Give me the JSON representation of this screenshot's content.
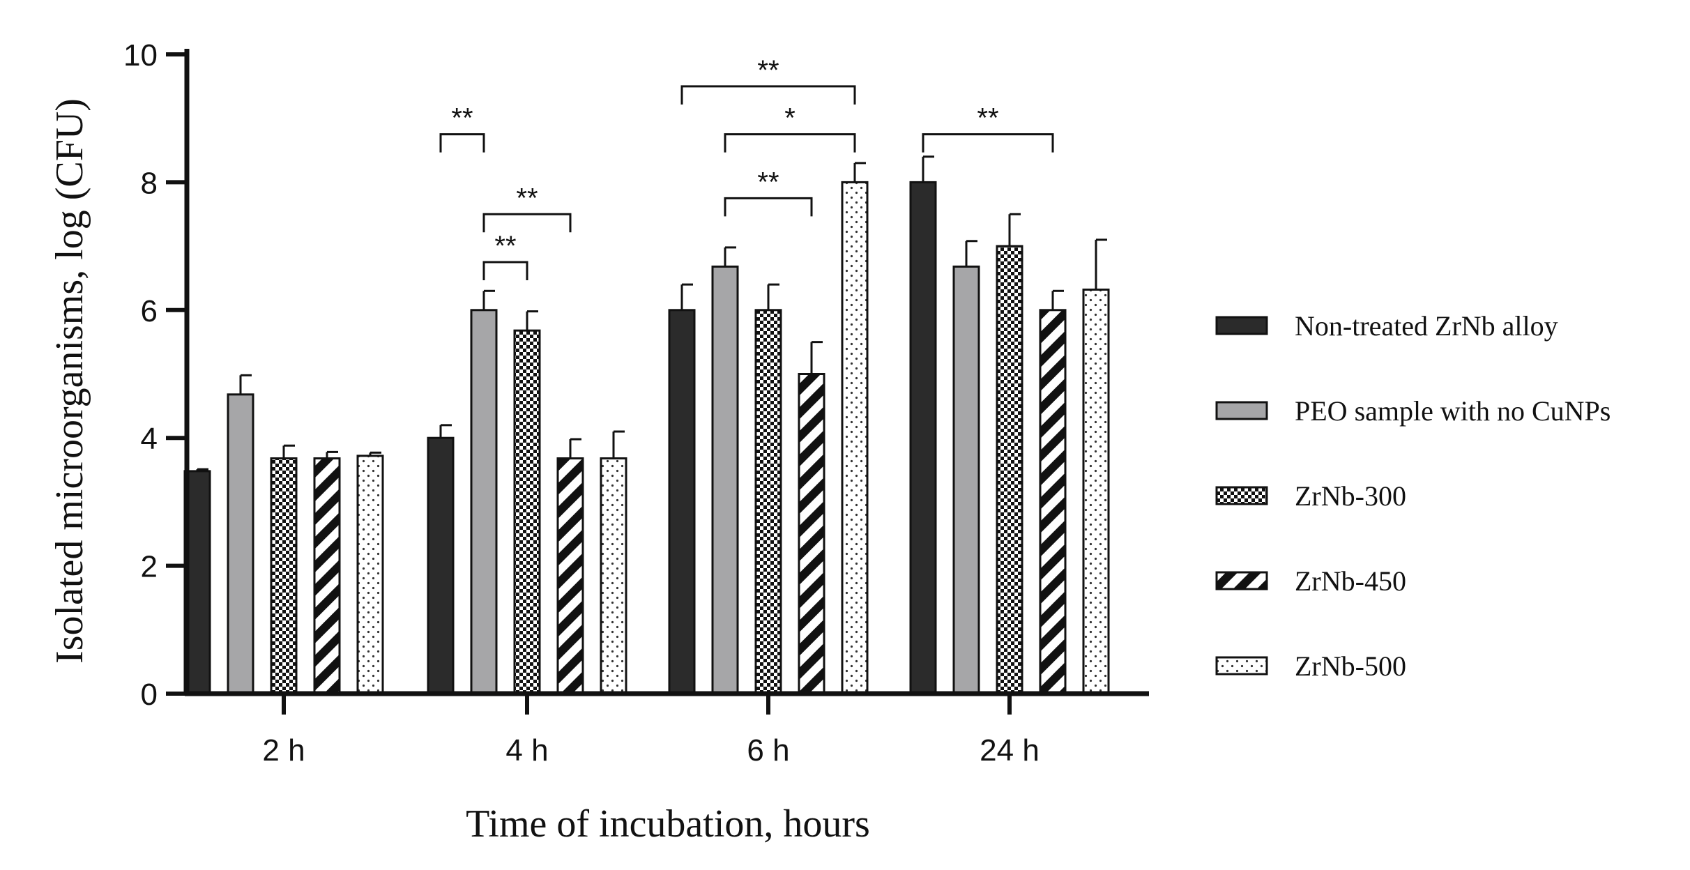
{
  "chart_data": {
    "type": "bar",
    "categories": [
      "2 h",
      "4 h",
      "6 h",
      "24 h"
    ],
    "xlabel": "Time of incubation, hours",
    "ylabel": "Isolated microorganisms, log (CFU)",
    "ylim": [
      0,
      10
    ],
    "yticks": [
      "0",
      "2",
      "4",
      "6",
      "8",
      "10"
    ],
    "grid": false,
    "legend_position": "right",
    "series": [
      {
        "name": "Non-treated ZrNb alloy",
        "pattern": "solid-dark",
        "values": [
          3.48,
          4.0,
          6.0,
          8.0
        ],
        "errors": [
          0.03,
          0.2,
          0.4,
          0.4
        ]
      },
      {
        "name": "PEO sample with no CuNPs",
        "pattern": "solid-grey",
        "values": [
          4.68,
          6.0,
          6.68,
          6.68
        ],
        "errors": [
          0.3,
          0.3,
          0.3,
          0.4
        ]
      },
      {
        "name": "ZrNb-300",
        "pattern": "checker",
        "values": [
          3.68,
          5.68,
          6.0,
          7.0
        ],
        "errors": [
          0.2,
          0.3,
          0.4,
          0.5
        ]
      },
      {
        "name": "ZrNb-450",
        "pattern": "diagonal",
        "values": [
          3.68,
          3.68,
          5.0,
          6.0
        ],
        "errors": [
          0.1,
          0.3,
          0.5,
          0.3
        ]
      },
      {
        "name": "ZrNb-500",
        "pattern": "dots",
        "values": [
          3.72,
          3.68,
          8.0,
          6.32
        ],
        "errors": [
          0.05,
          0.42,
          0.3,
          0.78
        ]
      }
    ],
    "significance": [
      {
        "category": "4 h",
        "from_series": 0,
        "to_series": 1,
        "label": "**",
        "y": 8.75
      },
      {
        "category": "4 h",
        "from_series": 1,
        "to_series": 3,
        "label": "**",
        "y": 7.5
      },
      {
        "category": "4 h",
        "from_series": 1,
        "to_series": 2,
        "label": "**",
        "y": 6.75
      },
      {
        "category": "6 h",
        "from_series": 0,
        "to_series": 4,
        "label": "**",
        "y": 9.5
      },
      {
        "category": "6 h",
        "from_series": 1,
        "to_series": 4,
        "label": "*",
        "y": 8.75
      },
      {
        "category": "6 h",
        "from_series": 1,
        "to_series": 3,
        "label": "**",
        "y": 7.75
      },
      {
        "category": "24 h",
        "from_series": 0,
        "to_series": 3,
        "label": "**",
        "y": 8.75
      }
    ],
    "colors": {
      "dark": "#2b2b2b",
      "grey": "#a6a6a8",
      "outline": "#111111",
      "background": "#ffffff"
    }
  }
}
